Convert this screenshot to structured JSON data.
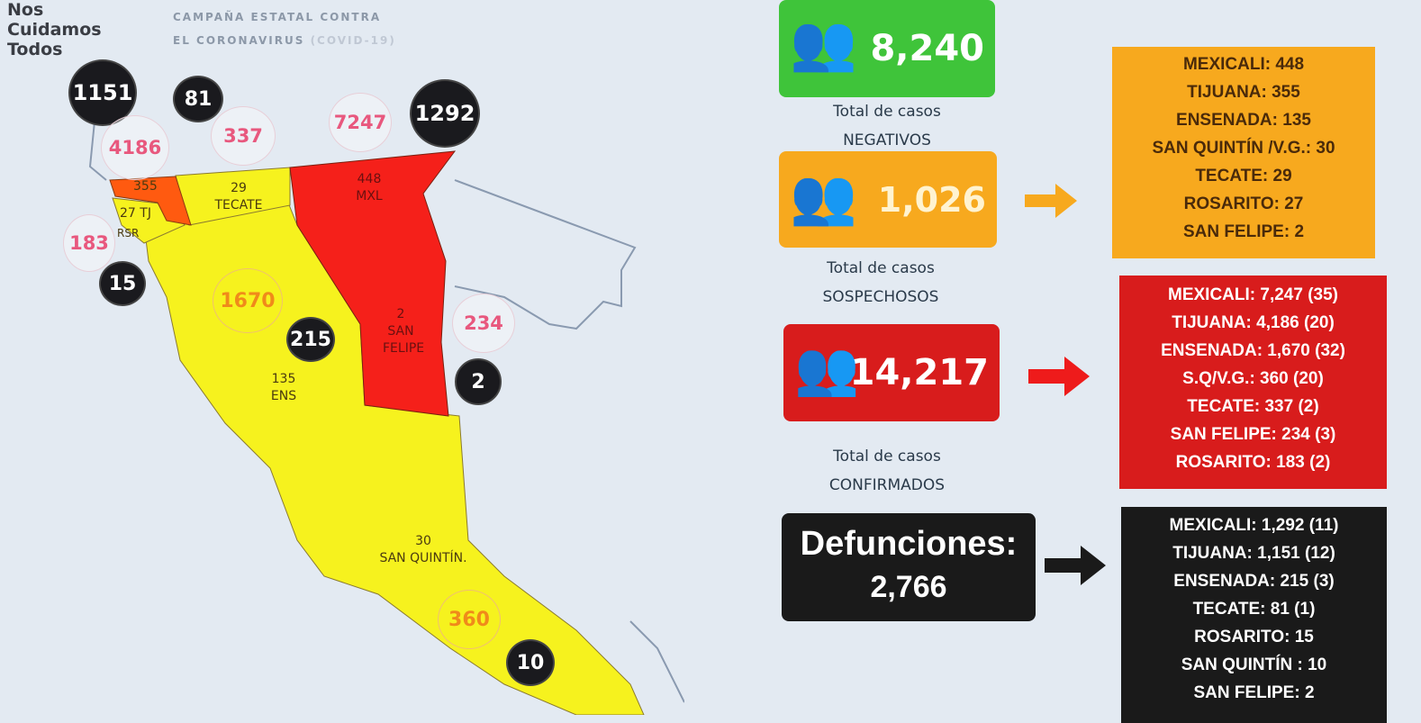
{
  "header": {
    "brand_lines": [
      "Nos",
      "Cuidamos",
      "Todos"
    ],
    "campaign_line1": "CAMPAÑA ESTATAL CONTRA",
    "campaign_line2": "EL CORONAVIRUS",
    "campaign_tag": "(COVID-19)"
  },
  "map": {
    "region_colors": {
      "high": "#f5201a",
      "medium": "#ff5a10",
      "low": "#f6f21e"
    },
    "region_labels": {
      "tijuana": "355",
      "rosarito": "27 TJ",
      "rsr": "RSR",
      "tecate_num": "29",
      "tecate": "TECATE",
      "mexicali_num": "448",
      "mexicali": "MXL",
      "sanfelipe_num": "2",
      "sanfelipe": "SAN FELIPE",
      "ensenada_num": "135",
      "ensenada": "ENS",
      "sanquintin_num": "30",
      "sanquintin": "SAN QUINTÍN."
    },
    "deaths_circles": {
      "tijuana": "1151",
      "tecate": "81",
      "mexicali": "1292",
      "rosarito": "15",
      "ensenada": "215",
      "sanfelipe": "2",
      "sanquintin": "10"
    },
    "confirmed_circles": {
      "tijuana": "4186",
      "tecate": "337",
      "mexicali": "7247",
      "rosarito": "183",
      "sanfelipe": "234"
    },
    "ensenada_circles": {
      "ensenada": "1670",
      "sanquintin": "360"
    }
  },
  "negativos": {
    "value": "8,240",
    "label1": "Total de casos",
    "label2": "NEGATIVOS",
    "color": "#3fc43a"
  },
  "sospechosos": {
    "value": "1,026",
    "label1": "Total de casos",
    "label2": "SOSPECHOSOS",
    "color": "#f7a91e",
    "items": [
      "MEXICALI: 448",
      "TIJUANA: 355",
      "ENSENADA: 135",
      "SAN QUINTÍN /V.G.: 30",
      "TECATE: 29",
      "ROSARITO: 27",
      "SAN FELIPE: 2"
    ]
  },
  "confirmados": {
    "value": "14,217",
    "label1": "Total de casos",
    "label2": "CONFIRMADOS",
    "color": "#d81c1c",
    "items": [
      "MEXICALI: 7,247 (35)",
      "TIJUANA: 4,186 (20)",
      "ENSENADA: 1,670 (32)",
      "S.Q/V.G.: 360 (20)",
      "TECATE: 337 (2)",
      "SAN FELIPE: 234 (3)",
      "ROSARITO: 183 (2)"
    ]
  },
  "defunciones": {
    "title": "Defunciones:",
    "value": "2,766",
    "color": "#1a1a1a",
    "items": [
      "MEXICALI: 1,292 (11)",
      "TIJUANA: 1,151 (12)",
      "ENSENADA: 215 (3)",
      "TECATE: 81 (1)",
      "ROSARITO: 15",
      "SAN QUINTÍN : 10",
      "SAN FELIPE: 2"
    ]
  }
}
